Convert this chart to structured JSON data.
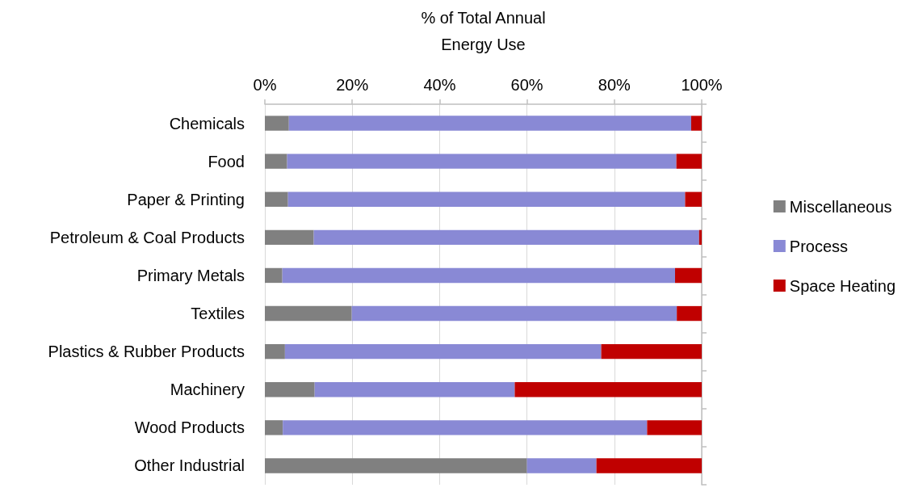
{
  "chart_data": {
    "type": "bar",
    "orientation": "horizontal",
    "stacked": true,
    "xlabel": "% of Total Annual Energy Use",
    "categories": [
      "Chemicals",
      "Food",
      "Paper & Printing",
      "Petroleum & Coal Products",
      "Primary Metals",
      "Textiles",
      "Plastics & Rubber Products",
      "Machinery",
      "Wood Products",
      "Other Industrial"
    ],
    "series": [
      {
        "name": "Miscellaneous",
        "color": "#808080",
        "values": [
          5.5,
          5.1,
          5.3,
          11.2,
          4.0,
          19.9,
          4.6,
          11.4,
          4.1,
          60.0
        ]
      },
      {
        "name": "Process",
        "color": "#8989d5",
        "values": [
          92.1,
          89.1,
          90.9,
          88.2,
          89.9,
          74.4,
          72.4,
          45.8,
          83.4,
          15.9
        ]
      },
      {
        "name": "Space Heating",
        "color": "#c00000",
        "values": [
          2.4,
          5.8,
          3.8,
          0.6,
          6.1,
          5.7,
          23.0,
          42.8,
          12.5,
          24.1
        ]
      }
    ],
    "xlim": [
      0,
      100
    ],
    "xticks": [
      {
        "value": 0,
        "label": "0%"
      },
      {
        "value": 20,
        "label": "20%"
      },
      {
        "value": 40,
        "label": "40%"
      },
      {
        "value": 60,
        "label": "60%"
      },
      {
        "value": 80,
        "label": "80%"
      },
      {
        "value": 100,
        "label": "100%"
      }
    ],
    "grid": "x",
    "legend": "right"
  }
}
